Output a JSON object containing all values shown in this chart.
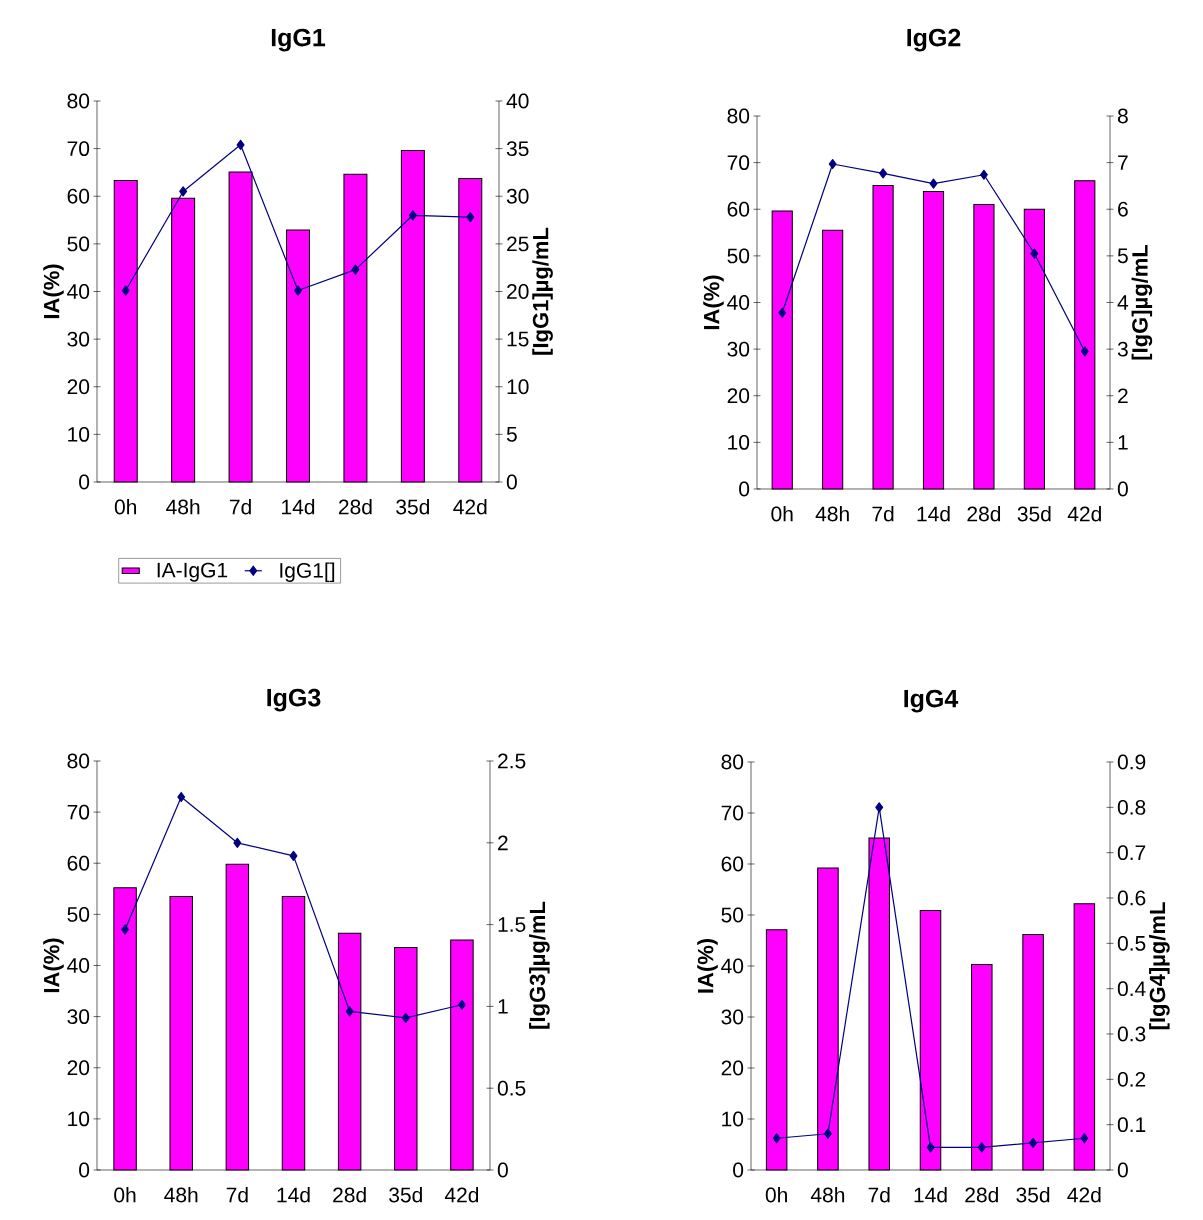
{
  "chart_data": [
    {
      "type": "bar",
      "title": "IgG1",
      "ylabel": "IA(%)",
      "y2label": "[IgG1]µg/mL",
      "categories": [
        "0h",
        "48h",
        "7d",
        "14d",
        "28d",
        "35d",
        "42d"
      ],
      "ylim": [
        0,
        80
      ],
      "yticks": [
        0,
        10,
        20,
        30,
        40,
        50,
        60,
        70,
        80
      ],
      "y2lim": [
        0,
        40
      ],
      "y2ticks": [
        0,
        5,
        10,
        15,
        20,
        25,
        30,
        35,
        40
      ],
      "marker": "diamond",
      "legend": "bottom",
      "series": [
        {
          "name": "IA-IgG1",
          "color": "#ff00ff",
          "values": [
            63.3,
            59.6,
            65.1,
            52.9,
            64.6,
            69.6,
            63.7
          ]
        },
        {
          "name": "IgG1[]",
          "type": "line",
          "axis": "y2",
          "color": "#000080",
          "values": [
            20.1,
            30.5,
            35.4,
            20.1,
            22.3,
            28.0,
            27.8
          ]
        }
      ]
    },
    {
      "type": "bar",
      "title": "IgG2",
      "ylabel": "IA(%)",
      "y2label": "[IgG]µg/mL",
      "categories": [
        "0h",
        "48h",
        "7d",
        "14d",
        "28d",
        "35d",
        "42d"
      ],
      "ylim": [
        0,
        80
      ],
      "yticks": [
        0,
        10,
        20,
        30,
        40,
        50,
        60,
        70,
        80
      ],
      "y2lim": [
        0,
        8
      ],
      "y2ticks": [
        0,
        1,
        2,
        3,
        4,
        5,
        6,
        7,
        8
      ],
      "marker": "diamond",
      "series": [
        {
          "color": "#ff00ff",
          "values": [
            59.6,
            55.5,
            65.1,
            63.8,
            61.0,
            60.0,
            66.1
          ]
        },
        {
          "type": "line",
          "axis": "y2",
          "color": "#000080",
          "values": [
            3.78,
            6.97,
            6.77,
            6.55,
            6.74,
            5.05,
            2.95
          ]
        }
      ]
    },
    {
      "type": "bar",
      "title": "IgG3",
      "ylabel": "IA(%)",
      "y2label": "[IgG3]µg/mL",
      "categories": [
        "0h",
        "48h",
        "7d",
        "14d",
        "28d",
        "35d",
        "42d"
      ],
      "ylim": [
        0,
        80
      ],
      "yticks": [
        0,
        10,
        20,
        30,
        40,
        50,
        60,
        70,
        80
      ],
      "y2lim": [
        0,
        2.5
      ],
      "y2ticks": [
        0,
        0.5,
        1,
        1.5,
        2,
        2.5
      ],
      "marker": "diamond",
      "series": [
        {
          "color": "#ff00ff",
          "values": [
            55.2,
            53.5,
            59.8,
            53.5,
            46.3,
            43.5,
            45.0
          ]
        },
        {
          "type": "line",
          "axis": "y2",
          "color": "#000080",
          "values": [
            1.47,
            2.28,
            2.0,
            1.92,
            0.97,
            0.93,
            1.01
          ]
        }
      ]
    },
    {
      "type": "bar",
      "title": "IgG4",
      "ylabel": "IA(%)",
      "y2label": "[IgG4]µg/mL",
      "categories": [
        "0h",
        "48h",
        "7d",
        "14d",
        "28d",
        "35d",
        "42d"
      ],
      "ylim": [
        0,
        80
      ],
      "yticks": [
        0,
        10,
        20,
        30,
        40,
        50,
        60,
        70,
        80
      ],
      "y2lim": [
        0,
        0.9
      ],
      "y2ticks": [
        0,
        0.1,
        0.2,
        0.3,
        0.4,
        0.5,
        0.6,
        0.7,
        0.8,
        0.9
      ],
      "marker": "diamond",
      "series": [
        {
          "color": "#ff00ff",
          "values": [
            47.1,
            59.2,
            65.1,
            50.9,
            40.3,
            46.2,
            52.2
          ]
        },
        {
          "type": "line",
          "axis": "y2",
          "color": "#000080",
          "values": [
            0.07,
            0.08,
            0.8,
            0.05,
            0.05,
            0.06,
            0.07
          ]
        }
      ]
    }
  ]
}
